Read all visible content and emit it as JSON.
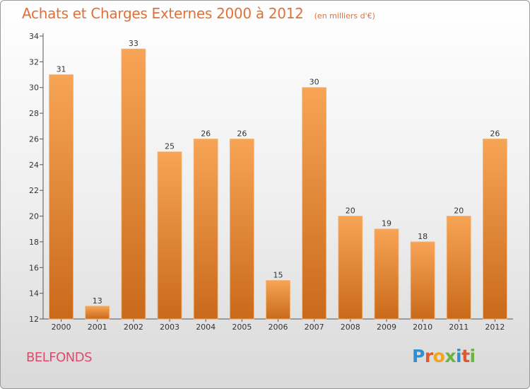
{
  "header": {
    "title": "Achats et Charges Externes 2000 à 2012",
    "subtitle": "(en milliers d'€)"
  },
  "footer": {
    "place_name": "BELFONDS",
    "logo_text": "Proxiti",
    "logo_letters": [
      {
        "ch": "P",
        "color": "#2f8fd1"
      },
      {
        "ch": "r",
        "color": "#e2572b"
      },
      {
        "ch": "o",
        "color": "#f2a31a"
      },
      {
        "ch": "x",
        "color": "#6cb33f"
      },
      {
        "ch": "i",
        "color": "#2f8fd1"
      },
      {
        "ch": "t",
        "color": "#e2572b"
      },
      {
        "ch": "i",
        "color": "#6cb33f"
      }
    ]
  },
  "chart_data": {
    "type": "bar",
    "title": "Achats et Charges Externes 2000 à 2012",
    "subtitle": "(en milliers d'€)",
    "xlabel": "",
    "ylabel": "",
    "categories": [
      "2000",
      "2001",
      "2002",
      "2003",
      "2004",
      "2005",
      "2006",
      "2007",
      "2008",
      "2009",
      "2010",
      "2011",
      "2012"
    ],
    "values": [
      31,
      13,
      33,
      25,
      26,
      26,
      15,
      30,
      20,
      19,
      18,
      20,
      26
    ],
    "ylim": [
      12,
      34
    ],
    "yticks": [
      12,
      14,
      16,
      18,
      20,
      22,
      24,
      26,
      28,
      30,
      32,
      34
    ],
    "grid": false,
    "bar_color_top": "#f7a456",
    "bar_color_bottom": "#c96a1a"
  }
}
